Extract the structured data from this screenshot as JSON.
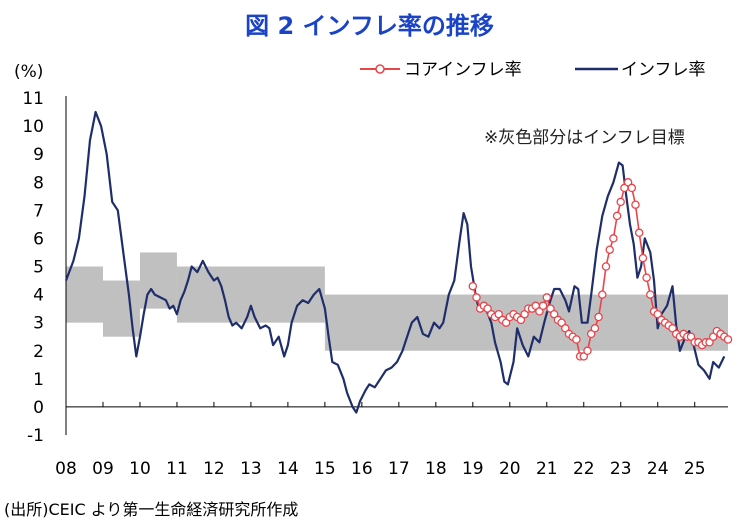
{
  "title": "図 2 インフレ率の推移",
  "unit": "(%)",
  "source": "(出所)CEIC より第一生命経済研究所作成",
  "colors": {
    "title": "#1a43c8",
    "headline": "#1f2e6b",
    "core": "#e8454b",
    "band": "#c0c0c0"
  },
  "chart_data": {
    "type": "line",
    "legend_position": "top-right",
    "annotation": "※灰色部分はインフレ目標",
    "ylim": [
      -1,
      11
    ],
    "yticks": [
      "-1",
      "0",
      "1",
      "2",
      "3",
      "4",
      "5",
      "6",
      "7",
      "8",
      "9",
      "10",
      "11"
    ],
    "xticks": [
      "08",
      "09",
      "10",
      "11",
      "12",
      "13",
      "14",
      "15",
      "16",
      "17",
      "18",
      "19",
      "20",
      "21",
      "22",
      "23",
      "24",
      "25"
    ],
    "xlim": [
      2008.0,
      2025.9
    ],
    "target_band": [
      {
        "x0": 2008.0,
        "x1": 2009.0,
        "low": 3.0,
        "high": 5.0
      },
      {
        "x0": 2009.0,
        "x1": 2010.0,
        "low": 2.5,
        "high": 4.5
      },
      {
        "x0": 2010.0,
        "x1": 2011.0,
        "low": 3.5,
        "high": 5.5
      },
      {
        "x0": 2011.0,
        "x1": 2015.0,
        "low": 3.0,
        "high": 5.0
      },
      {
        "x0": 2015.0,
        "x1": 2025.9,
        "low": 2.0,
        "high": 4.0
      }
    ],
    "series": [
      {
        "name": "インフレ率",
        "points": [
          [
            2008.0,
            4.5
          ],
          [
            2008.2,
            5.2
          ],
          [
            2008.35,
            6.0
          ],
          [
            2008.5,
            7.5
          ],
          [
            2008.65,
            9.5
          ],
          [
            2008.8,
            10.5
          ],
          [
            2008.95,
            10.0
          ],
          [
            2009.1,
            9.0
          ],
          [
            2009.25,
            7.3
          ],
          [
            2009.4,
            7.0
          ],
          [
            2009.55,
            5.5
          ],
          [
            2009.7,
            4.0
          ],
          [
            2009.8,
            2.8
          ],
          [
            2009.9,
            1.8
          ],
          [
            2010.0,
            2.5
          ],
          [
            2010.1,
            3.3
          ],
          [
            2010.2,
            4.0
          ],
          [
            2010.3,
            4.2
          ],
          [
            2010.4,
            4.0
          ],
          [
            2010.55,
            3.9
          ],
          [
            2010.7,
            3.8
          ],
          [
            2010.8,
            3.5
          ],
          [
            2010.9,
            3.6
          ],
          [
            2011.0,
            3.3
          ],
          [
            2011.1,
            3.8
          ],
          [
            2011.2,
            4.1
          ],
          [
            2011.3,
            4.5
          ],
          [
            2011.4,
            5.0
          ],
          [
            2011.55,
            4.8
          ],
          [
            2011.7,
            5.2
          ],
          [
            2011.85,
            4.8
          ],
          [
            2012.0,
            4.5
          ],
          [
            2012.1,
            4.6
          ],
          [
            2012.2,
            4.3
          ],
          [
            2012.3,
            3.8
          ],
          [
            2012.4,
            3.2
          ],
          [
            2012.5,
            2.9
          ],
          [
            2012.6,
            3.0
          ],
          [
            2012.75,
            2.8
          ],
          [
            2012.9,
            3.2
          ],
          [
            2013.0,
            3.6
          ],
          [
            2013.1,
            3.2
          ],
          [
            2013.25,
            2.8
          ],
          [
            2013.4,
            2.9
          ],
          [
            2013.5,
            2.8
          ],
          [
            2013.6,
            2.2
          ],
          [
            2013.75,
            2.5
          ],
          [
            2013.9,
            1.8
          ],
          [
            2014.0,
            2.2
          ],
          [
            2014.1,
            3.0
          ],
          [
            2014.25,
            3.6
          ],
          [
            2014.4,
            3.8
          ],
          [
            2014.55,
            3.7
          ],
          [
            2014.7,
            4.0
          ],
          [
            2014.85,
            4.2
          ],
          [
            2015.0,
            3.5
          ],
          [
            2015.1,
            2.5
          ],
          [
            2015.2,
            1.6
          ],
          [
            2015.35,
            1.5
          ],
          [
            2015.5,
            1.0
          ],
          [
            2015.6,
            0.5
          ],
          [
            2015.75,
            0.0
          ],
          [
            2015.85,
            -0.2
          ],
          [
            2015.95,
            0.2
          ],
          [
            2016.1,
            0.6
          ],
          [
            2016.2,
            0.8
          ],
          [
            2016.35,
            0.7
          ],
          [
            2016.5,
            1.0
          ],
          [
            2016.65,
            1.3
          ],
          [
            2016.8,
            1.4
          ],
          [
            2016.95,
            1.6
          ],
          [
            2017.1,
            2.0
          ],
          [
            2017.2,
            2.4
          ],
          [
            2017.35,
            3.0
          ],
          [
            2017.5,
            3.2
          ],
          [
            2017.65,
            2.6
          ],
          [
            2017.8,
            2.5
          ],
          [
            2017.95,
            3.0
          ],
          [
            2018.1,
            2.8
          ],
          [
            2018.2,
            3.0
          ],
          [
            2018.35,
            4.0
          ],
          [
            2018.5,
            4.5
          ],
          [
            2018.65,
            6.0
          ],
          [
            2018.75,
            6.9
          ],
          [
            2018.85,
            6.5
          ],
          [
            2018.95,
            5.0
          ],
          [
            2019.1,
            3.8
          ],
          [
            2019.2,
            3.4
          ],
          [
            2019.35,
            3.5
          ],
          [
            2019.5,
            3.0
          ],
          [
            2019.6,
            2.3
          ],
          [
            2019.75,
            1.6
          ],
          [
            2019.85,
            0.9
          ],
          [
            2019.95,
            0.8
          ],
          [
            2020.1,
            1.6
          ],
          [
            2020.2,
            2.8
          ],
          [
            2020.35,
            2.2
          ],
          [
            2020.5,
            1.8
          ],
          [
            2020.65,
            2.5
          ],
          [
            2020.8,
            2.3
          ],
          [
            2020.95,
            3.1
          ],
          [
            2021.1,
            3.8
          ],
          [
            2021.2,
            4.2
          ],
          [
            2021.35,
            4.2
          ],
          [
            2021.5,
            3.8
          ],
          [
            2021.6,
            3.4
          ],
          [
            2021.75,
            4.3
          ],
          [
            2021.85,
            4.2
          ],
          [
            2021.95,
            3.0
          ],
          [
            2022.1,
            3.0
          ],
          [
            2022.2,
            4.0
          ],
          [
            2022.35,
            5.6
          ],
          [
            2022.5,
            6.8
          ],
          [
            2022.65,
            7.5
          ],
          [
            2022.8,
            8.0
          ],
          [
            2022.95,
            8.7
          ],
          [
            2023.05,
            8.6
          ],
          [
            2023.15,
            7.5
          ],
          [
            2023.25,
            6.5
          ],
          [
            2023.35,
            5.8
          ],
          [
            2023.45,
            4.6
          ],
          [
            2023.55,
            5.0
          ],
          [
            2023.65,
            6.0
          ],
          [
            2023.8,
            5.5
          ],
          [
            2023.9,
            4.5
          ],
          [
            2024.0,
            2.8
          ],
          [
            2024.1,
            3.3
          ],
          [
            2024.25,
            3.6
          ],
          [
            2024.4,
            4.3
          ],
          [
            2024.5,
            2.9
          ],
          [
            2024.6,
            2.0
          ],
          [
            2024.75,
            2.5
          ],
          [
            2024.85,
            2.7
          ],
          [
            2024.95,
            2.3
          ],
          [
            2025.1,
            1.5
          ],
          [
            2025.25,
            1.3
          ],
          [
            2025.4,
            1.0
          ],
          [
            2025.5,
            1.6
          ],
          [
            2025.65,
            1.4
          ],
          [
            2025.8,
            1.8
          ]
        ]
      },
      {
        "name": "コアインフレ率",
        "points": [
          [
            2019.0,
            4.3
          ],
          [
            2019.1,
            3.9
          ],
          [
            2019.2,
            3.5
          ],
          [
            2019.3,
            3.6
          ],
          [
            2019.4,
            3.5
          ],
          [
            2019.5,
            3.3
          ],
          [
            2019.6,
            3.2
          ],
          [
            2019.7,
            3.3
          ],
          [
            2019.8,
            3.1
          ],
          [
            2019.9,
            3.0
          ],
          [
            2020.0,
            3.2
          ],
          [
            2020.1,
            3.3
          ],
          [
            2020.2,
            3.2
          ],
          [
            2020.3,
            3.1
          ],
          [
            2020.4,
            3.3
          ],
          [
            2020.5,
            3.5
          ],
          [
            2020.6,
            3.5
          ],
          [
            2020.7,
            3.6
          ],
          [
            2020.8,
            3.4
          ],
          [
            2020.9,
            3.6
          ],
          [
            2021.0,
            3.9
          ],
          [
            2021.1,
            3.5
          ],
          [
            2021.2,
            3.3
          ],
          [
            2021.3,
            3.1
          ],
          [
            2021.4,
            3.0
          ],
          [
            2021.5,
            2.8
          ],
          [
            2021.6,
            2.6
          ],
          [
            2021.7,
            2.5
          ],
          [
            2021.8,
            2.4
          ],
          [
            2021.9,
            1.8
          ],
          [
            2022.0,
            1.8
          ],
          [
            2022.1,
            2.0
          ],
          [
            2022.2,
            2.6
          ],
          [
            2022.3,
            2.8
          ],
          [
            2022.4,
            3.2
          ],
          [
            2022.5,
            4.0
          ],
          [
            2022.6,
            5.0
          ],
          [
            2022.7,
            5.6
          ],
          [
            2022.8,
            6.0
          ],
          [
            2022.9,
            6.8
          ],
          [
            2023.0,
            7.3
          ],
          [
            2023.1,
            7.8
          ],
          [
            2023.2,
            8.0
          ],
          [
            2023.3,
            7.8
          ],
          [
            2023.4,
            7.2
          ],
          [
            2023.5,
            6.2
          ],
          [
            2023.6,
            5.3
          ],
          [
            2023.7,
            4.6
          ],
          [
            2023.8,
            4.0
          ],
          [
            2023.9,
            3.4
          ],
          [
            2024.0,
            3.3
          ],
          [
            2024.1,
            3.1
          ],
          [
            2024.2,
            3.0
          ],
          [
            2024.3,
            2.9
          ],
          [
            2024.4,
            2.8
          ],
          [
            2024.5,
            2.6
          ],
          [
            2024.6,
            2.5
          ],
          [
            2024.7,
            2.6
          ],
          [
            2024.8,
            2.5
          ],
          [
            2024.9,
            2.5
          ],
          [
            2025.0,
            2.3
          ],
          [
            2025.1,
            2.3
          ],
          [
            2025.2,
            2.2
          ],
          [
            2025.3,
            2.3
          ],
          [
            2025.4,
            2.3
          ],
          [
            2025.5,
            2.5
          ],
          [
            2025.6,
            2.7
          ],
          [
            2025.7,
            2.6
          ],
          [
            2025.8,
            2.5
          ],
          [
            2025.9,
            2.4
          ]
        ]
      }
    ]
  }
}
